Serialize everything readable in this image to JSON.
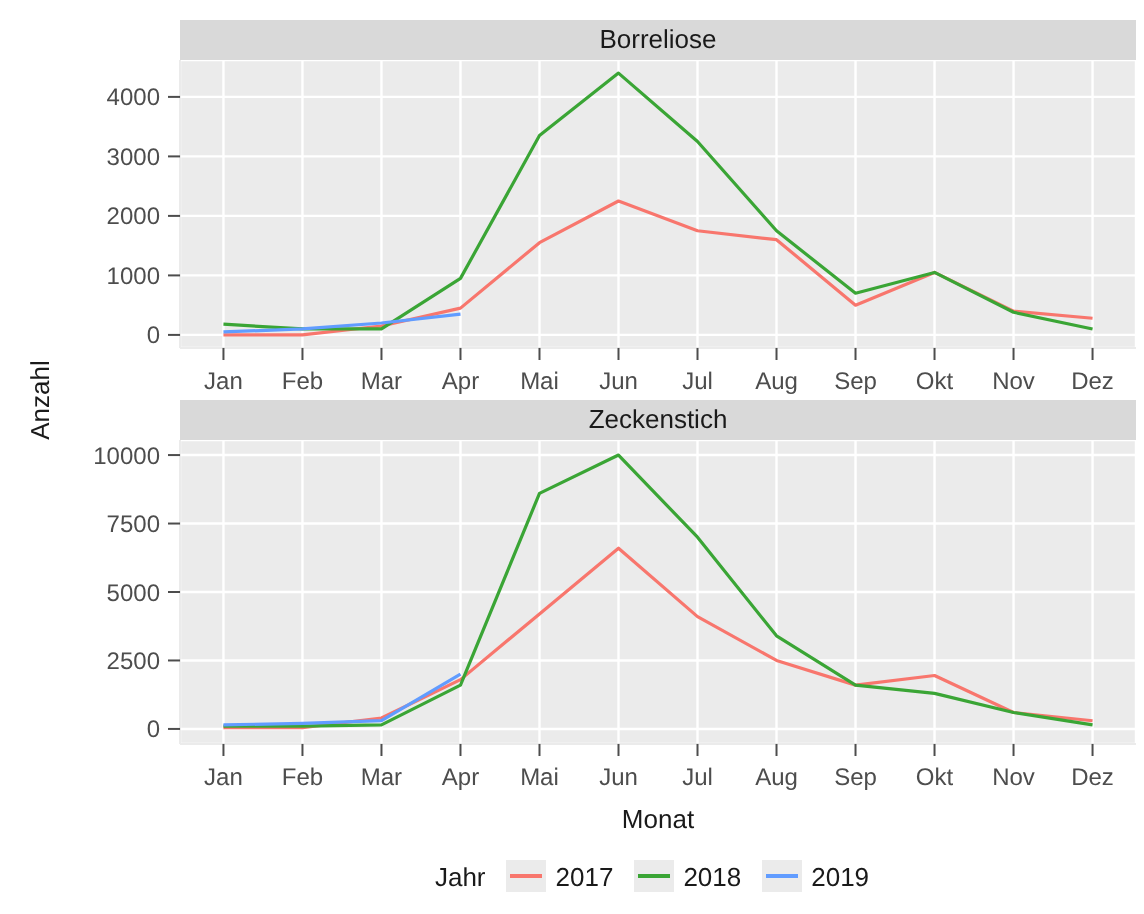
{
  "chart_data": [
    {
      "type": "line",
      "title": "Borreliose",
      "ylabel": "Anzahl",
      "categories": [
        "Jan",
        "Feb",
        "Mar",
        "Apr",
        "Mai",
        "Jun",
        "Jul",
        "Aug",
        "Sep",
        "Okt",
        "Nov",
        "Dez"
      ],
      "ylim": [
        -220,
        4620
      ],
      "yticks": [
        0,
        1000,
        2000,
        3000,
        4000
      ],
      "grid": true,
      "legend": "bottom",
      "series": [
        {
          "name": "2017",
          "color": "#f8766d",
          "values": [
            0,
            0,
            150,
            450,
            1550,
            2250,
            1750,
            1600,
            500,
            1050,
            400,
            280
          ]
        },
        {
          "name": "2018",
          "color": "#3aa535",
          "values": [
            180,
            100,
            100,
            950,
            3350,
            4400,
            3250,
            1750,
            700,
            1050,
            380,
            100
          ]
        },
        {
          "name": "2019",
          "color": "#619cff",
          "values": [
            50,
            100,
            200,
            350,
            null,
            null,
            null,
            null,
            null,
            null,
            null,
            null
          ]
        }
      ]
    },
    {
      "type": "line",
      "title": "Zeckenstich",
      "xlabel": "Monat",
      "legend_title": "Jahr",
      "legend": "bottom",
      "categories": [
        "Jan",
        "Feb",
        "Mar",
        "Apr",
        "Mai",
        "Jun",
        "Jul",
        "Aug",
        "Sep",
        "Okt",
        "Nov",
        "Dez"
      ],
      "ylim": [
        -550,
        10550
      ],
      "yticks": [
        0,
        2500,
        5000,
        7500,
        10000
      ],
      "grid": true,
      "series": [
        {
          "name": "2017",
          "color": "#f8766d",
          "values": [
            50,
            50,
            400,
            1800,
            4200,
            6600,
            4100,
            2500,
            1600,
            1950,
            600,
            300
          ]
        },
        {
          "name": "2018",
          "color": "#3aa535",
          "values": [
            100,
            100,
            150,
            1600,
            8600,
            10000,
            7000,
            3400,
            1600,
            1300,
            600,
            150
          ]
        },
        {
          "name": "2019",
          "color": "#619cff",
          "values": [
            150,
            200,
            300,
            2000,
            null,
            null,
            null,
            null,
            null,
            null,
            null,
            null
          ]
        }
      ]
    }
  ]
}
